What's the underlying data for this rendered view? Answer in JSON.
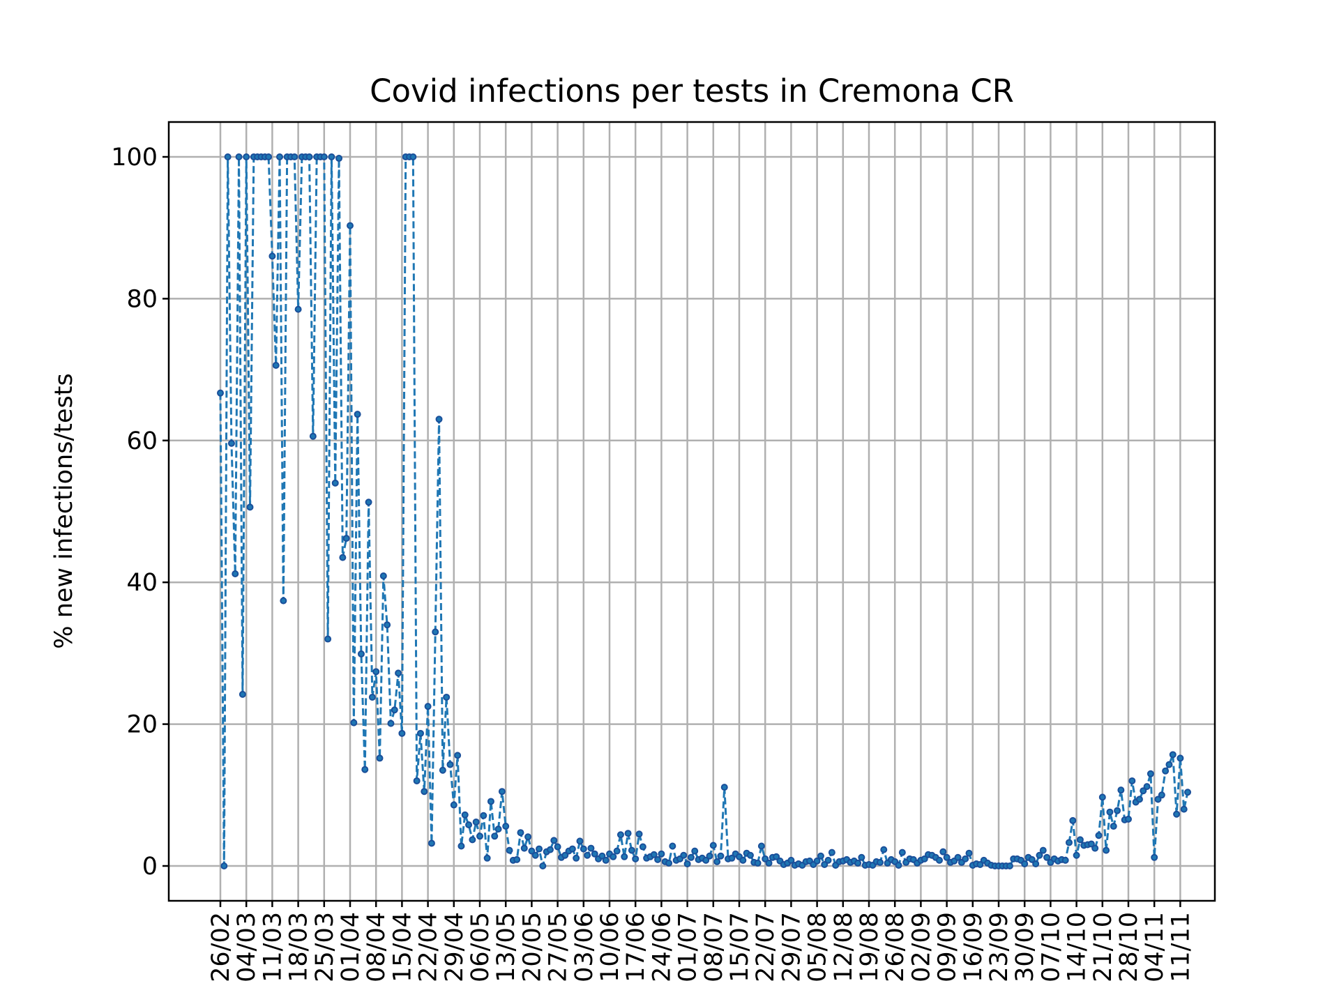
{
  "chart_data": {
    "type": "line",
    "title": "Covid infections per tests in Cremona CR",
    "xlabel": "",
    "ylabel": "% new infections/tests",
    "ylim": [
      -5,
      105
    ],
    "yticks": [
      0,
      20,
      40,
      60,
      80,
      100
    ],
    "xticks": [
      "26/02",
      "04/03",
      "11/03",
      "18/03",
      "25/03",
      "01/04",
      "08/04",
      "15/04",
      "22/04",
      "29/04",
      "06/05",
      "13/05",
      "20/05",
      "27/05",
      "03/06",
      "10/06",
      "17/06",
      "24/06",
      "01/07",
      "08/07",
      "15/07",
      "22/07",
      "29/07",
      "05/08",
      "12/08",
      "19/08",
      "26/08",
      "02/09",
      "09/09",
      "16/09",
      "23/09",
      "30/09",
      "07/10",
      "14/10",
      "21/10",
      "28/10",
      "04/11",
      "11/11"
    ],
    "grid": true,
    "series": [
      {
        "color": "#1f77b4",
        "start_label": "26/02",
        "values": [
          66.7,
          0,
          100,
          59.6,
          41.2,
          100,
          24.2,
          100,
          50.6,
          100,
          100,
          100,
          100,
          100,
          86,
          70.6,
          100,
          37.4,
          100,
          100,
          100,
          78.5,
          100,
          100,
          100,
          60.6,
          100,
          100,
          100,
          32,
          100,
          54,
          99.8,
          43.5,
          46.2,
          90.3,
          20.2,
          63.7,
          29.9,
          13.6,
          51.3,
          23.8,
          27.4,
          15.2,
          40.9,
          34,
          20.1,
          22,
          27.2,
          18.7,
          100,
          100,
          100,
          12,
          18.7,
          10.5,
          22.5,
          3.2,
          33,
          63,
          13.5,
          23.8,
          14.3,
          8.6,
          15.6,
          2.8,
          7.2,
          5.8,
          3.7,
          6.2,
          4.2,
          7.1,
          1.1,
          9.1,
          4.2,
          5.2,
          10.5,
          5.6,
          2.2,
          0.8,
          0.9,
          4.7,
          2.5,
          4.1,
          2.1,
          1.5,
          2.4,
          0,
          2,
          2.3,
          3.6,
          2.7,
          1.2,
          1.5,
          2.1,
          2.4,
          1.1,
          3.5,
          2.4,
          1.5,
          2.5,
          1.7,
          1.0,
          1.4,
          0.8,
          1.7,
          1.3,
          2.1,
          4.4,
          1.3,
          4.6,
          2.2,
          1.0,
          4.5,
          2.7,
          1.1,
          1.3,
          1.6,
          0.9,
          1.7,
          0.6,
          0.4,
          2.8,
          0.8,
          1.0,
          1.5,
          0.3,
          1.2,
          2.1,
          0.9,
          1.1,
          0.8,
          1.4,
          2.9,
          0.6,
          1.4,
          11.1,
          1.0,
          1.1,
          1.7,
          1.3,
          0.8,
          1.8,
          1.5,
          0.5,
          0.4,
          2.8,
          1.0,
          0.4,
          1.2,
          1.3,
          0.7,
          0.2,
          0.4,
          0.8,
          0.1,
          0.3,
          0.1,
          0.6,
          0.7,
          0.2,
          0.7,
          1.4,
          0.2,
          0.8,
          1.9,
          0.1,
          0.6,
          0.7,
          0.9,
          0.5,
          0.7,
          0.4,
          1.2,
          0.1,
          0.2,
          0.1,
          0.6,
          0.5,
          2.3,
          0.4,
          0.9,
          0.6,
          0.1,
          1.9,
          0.5,
          1.0,
          0.9,
          0.4,
          0.8,
          1.0,
          1.6,
          1.5,
          1.2,
          0.8,
          2.0,
          1.2,
          0.5,
          0.7,
          1.2,
          0.5,
          1.0,
          1.8,
          0.1,
          0.3,
          0.2,
          0.8,
          0.4,
          0.1,
          0.0,
          0.0,
          0.0,
          0.0,
          0.0,
          1.0,
          1.0,
          0.8,
          0.3,
          1.2,
          0.9,
          0.3,
          1.5,
          2.2,
          1.2,
          0.5,
          1.0,
          0.7,
          0.9,
          0.8,
          3.3,
          6.4,
          1.5,
          3.7,
          2.9,
          3.0,
          3.1,
          2.5,
          4.3,
          9.7,
          2.2,
          7.6,
          5.6,
          7.8,
          10.7,
          6.5,
          6.6,
          12,
          9,
          9.4,
          10.6,
          11.2,
          13,
          1.2,
          9.4,
          10,
          13.4,
          14.3,
          15.7,
          7.3,
          15.2,
          8.0,
          10.4
        ]
      }
    ]
  }
}
